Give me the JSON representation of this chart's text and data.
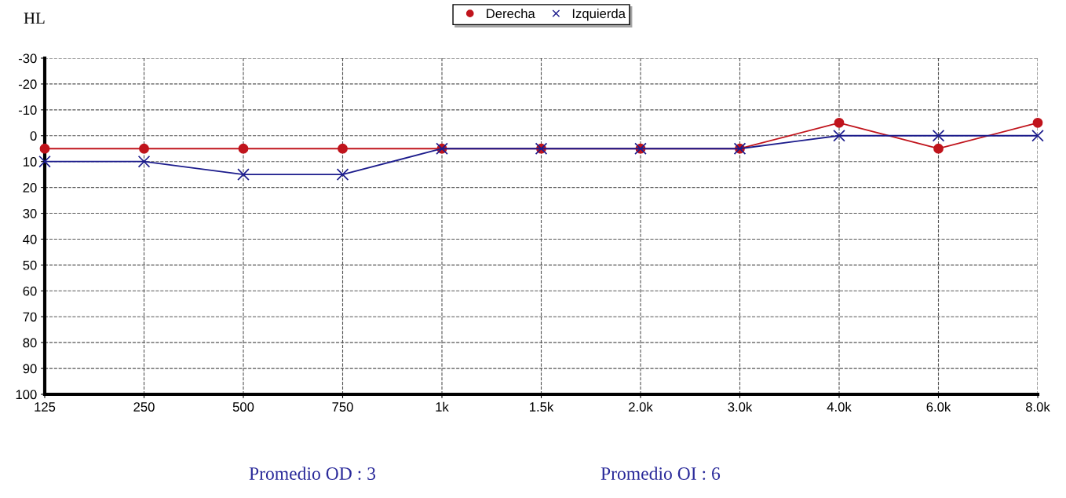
{
  "chart_data": {
    "type": "line",
    "ylabel": "HL",
    "categories": [
      "125",
      "250",
      "500",
      "750",
      "1k",
      "1.5k",
      "2.0k",
      "3.0k",
      "4.0k",
      "6.0k",
      "8.0k"
    ],
    "series": [
      {
        "name": "Derecha",
        "color": "#c0141c",
        "marker": "circle",
        "values": [
          5,
          5,
          5,
          5,
          5,
          5,
          5,
          5,
          -5,
          5,
          -5
        ]
      },
      {
        "name": "Izquierda",
        "color": "#1c1c8c",
        "marker": "cross",
        "values": [
          10,
          10,
          15,
          15,
          5,
          5,
          5,
          5,
          0,
          0,
          0
        ]
      }
    ],
    "ylim": [
      100,
      -30
    ],
    "yticks": [
      -30,
      -20,
      -10,
      0,
      10,
      20,
      30,
      40,
      50,
      60,
      70,
      80,
      90,
      100
    ],
    "grid": true,
    "legend": "top",
    "line_style": "solid",
    "annotations": [
      "Promedio OD : 3",
      "Promedio OI : 6"
    ]
  }
}
